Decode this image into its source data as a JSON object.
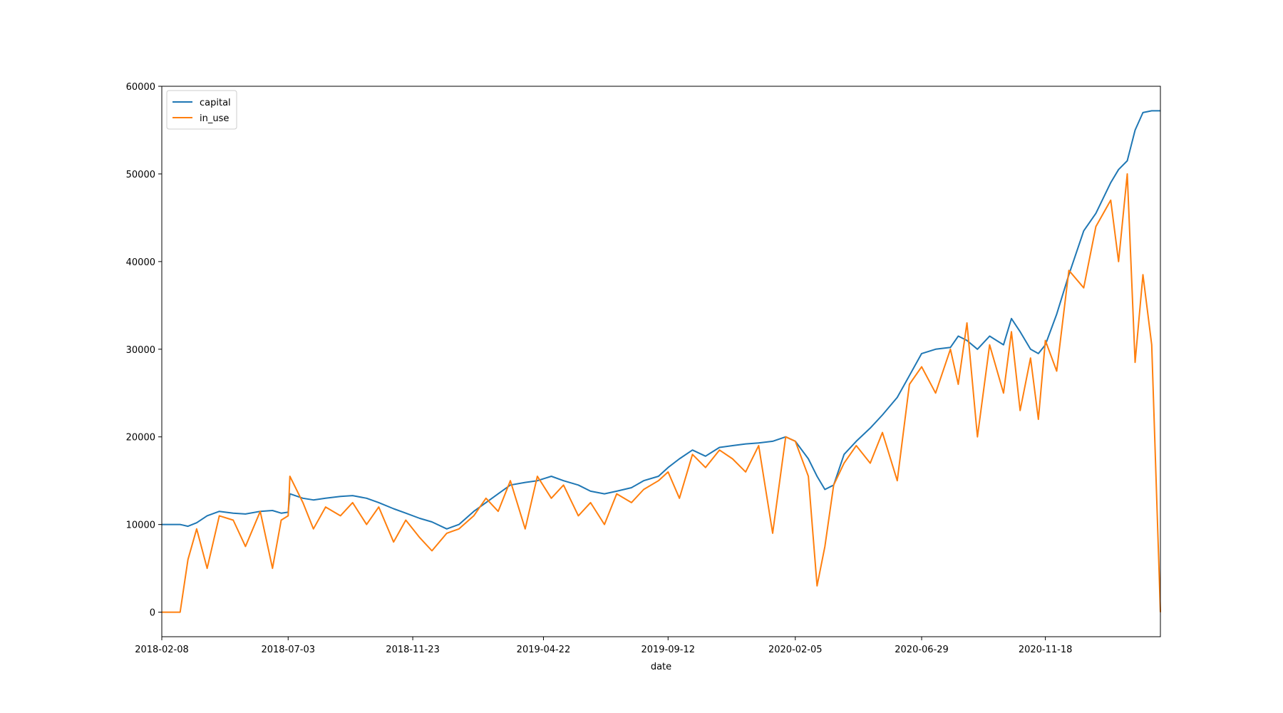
{
  "chart_data": {
    "type": "line",
    "title": "",
    "xlabel": "date",
    "ylabel": "",
    "ylim": [
      -2800,
      60000
    ],
    "xlim": [
      "2018-02-08",
      "2021-03-30"
    ],
    "xticks": [
      "2018-02-08",
      "2018-07-03",
      "2018-11-23",
      "2019-04-22",
      "2019-09-12",
      "2020-02-05",
      "2020-06-29",
      "2020-11-18"
    ],
    "yticks": [
      0,
      10000,
      20000,
      30000,
      40000,
      50000,
      60000
    ],
    "grid": false,
    "legend_position": "top-left",
    "x": [
      "2018-02-08",
      "2018-03-01",
      "2018-03-10",
      "2018-03-20",
      "2018-04-01",
      "2018-04-15",
      "2018-05-01",
      "2018-05-15",
      "2018-06-01",
      "2018-06-15",
      "2018-06-25",
      "2018-07-03",
      "2018-07-05",
      "2018-07-20",
      "2018-08-01",
      "2018-08-15",
      "2018-09-01",
      "2018-09-15",
      "2018-10-01",
      "2018-10-15",
      "2018-11-01",
      "2018-11-15",
      "2018-12-01",
      "2018-12-15",
      "2019-01-01",
      "2019-01-15",
      "2019-02-01",
      "2019-02-15",
      "2019-03-01",
      "2019-03-15",
      "2019-04-01",
      "2019-04-15",
      "2019-05-01",
      "2019-05-15",
      "2019-06-01",
      "2019-06-15",
      "2019-07-01",
      "2019-07-15",
      "2019-08-01",
      "2019-08-15",
      "2019-09-01",
      "2019-09-12",
      "2019-09-25",
      "2019-10-10",
      "2019-10-25",
      "2019-11-10",
      "2019-11-25",
      "2019-12-10",
      "2019-12-25",
      "2020-01-10",
      "2020-01-25",
      "2020-02-05",
      "2020-02-20",
      "2020-03-01",
      "2020-03-10",
      "2020-03-20",
      "2020-04-01",
      "2020-04-15",
      "2020-05-01",
      "2020-05-15",
      "2020-06-01",
      "2020-06-15",
      "2020-06-29",
      "2020-07-15",
      "2020-08-01",
      "2020-08-10",
      "2020-08-20",
      "2020-09-01",
      "2020-09-15",
      "2020-10-01",
      "2020-10-10",
      "2020-10-20",
      "2020-11-01",
      "2020-11-10",
      "2020-11-18",
      "2020-12-01",
      "2020-12-15",
      "2021-01-01",
      "2021-01-15",
      "2021-02-01",
      "2021-02-10",
      "2021-02-20",
      "2021-03-01",
      "2021-03-10",
      "2021-03-20",
      "2021-03-30"
    ],
    "series": [
      {
        "name": "capital",
        "color": "#1f77b4",
        "values": [
          10000,
          10000,
          9800,
          10200,
          11000,
          11500,
          11300,
          11200,
          11500,
          11600,
          11300,
          11400,
          13500,
          13000,
          12800,
          13000,
          13200,
          13300,
          13000,
          12500,
          11800,
          11300,
          10700,
          10300,
          9500,
          10000,
          11500,
          12500,
          13500,
          14500,
          14800,
          15000,
          15500,
          15000,
          14500,
          13800,
          13500,
          13800,
          14200,
          15000,
          15500,
          16500,
          17500,
          18500,
          17800,
          18800,
          19000,
          19200,
          19300,
          19500,
          20000,
          19500,
          17500,
          15500,
          14000,
          14500,
          18000,
          19500,
          21000,
          22500,
          24500,
          27000,
          29500,
          30000,
          30200,
          31500,
          31000,
          30000,
          31500,
          30500,
          33500,
          32000,
          30000,
          29500,
          30500,
          34000,
          38500,
          43500,
          45500,
          49000,
          50500,
          51500,
          55000,
          57000,
          57200,
          57200
        ]
      },
      {
        "name": "in_use",
        "color": "#ff7f0e",
        "values": [
          0,
          0,
          6000,
          9500,
          5000,
          11000,
          10500,
          7500,
          11500,
          5000,
          10500,
          11000,
          15500,
          12500,
          9500,
          12000,
          11000,
          12500,
          10000,
          12000,
          8000,
          10500,
          8500,
          7000,
          9000,
          9500,
          11000,
          13000,
          11500,
          15000,
          9500,
          15500,
          13000,
          14500,
          11000,
          12500,
          10000,
          13500,
          12500,
          14000,
          15000,
          16000,
          13000,
          18000,
          16500,
          18500,
          17500,
          16000,
          19000,
          9000,
          20000,
          19500,
          15500,
          3000,
          7500,
          14500,
          17000,
          19000,
          17000,
          20500,
          15000,
          26000,
          28000,
          25000,
          30000,
          26000,
          33000,
          20000,
          30500,
          25000,
          32000,
          23000,
          29000,
          22000,
          31000,
          27500,
          39000,
          37000,
          44000,
          47000,
          40000,
          50000,
          28500,
          38500,
          30500,
          0
        ]
      }
    ]
  }
}
